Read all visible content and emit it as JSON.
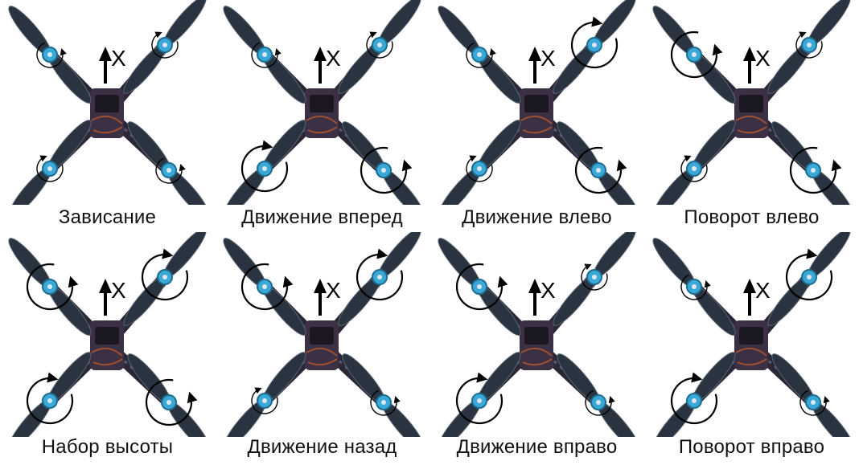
{
  "figure": {
    "axis_label": "X",
    "colors": {
      "propeller": "#2a3340",
      "propeller_edge": "#5a6573",
      "arm": "#2b2736",
      "arm_highlight": "#6b6f8a",
      "motor": "#3aa9d8",
      "body": "#3b3044",
      "wiring": "#a0502e",
      "arrow": "#000000"
    },
    "panels": [
      {
        "caption": "Зависание",
        "rotors": {
          "fl": "small",
          "fr": "small",
          "rl": "small",
          "rr": "small"
        }
      },
      {
        "caption": "Движение вперед",
        "rotors": {
          "fl": "small",
          "fr": "small",
          "rl": "large",
          "rr": "large"
        }
      },
      {
        "caption": "Движение влево",
        "rotors": {
          "fl": "small",
          "fr": "large",
          "rl": "small",
          "rr": "large"
        }
      },
      {
        "caption": "Поворот влево",
        "rotors": {
          "fl": "large",
          "fr": "small",
          "rl": "small",
          "rr": "large"
        }
      },
      {
        "caption": "Набор высоты",
        "rotors": {
          "fl": "large",
          "fr": "large",
          "rl": "large",
          "rr": "large"
        }
      },
      {
        "caption": "Движение назад",
        "rotors": {
          "fl": "large",
          "fr": "large",
          "rl": "small",
          "rr": "small"
        }
      },
      {
        "caption": "Движение вправо",
        "rotors": {
          "fl": "large",
          "fr": "small",
          "rl": "large",
          "rr": "small"
        }
      },
      {
        "caption": "Поворот вправо",
        "rotors": {
          "fl": "small",
          "fr": "large",
          "rl": "large",
          "rr": "small"
        }
      }
    ]
  }
}
